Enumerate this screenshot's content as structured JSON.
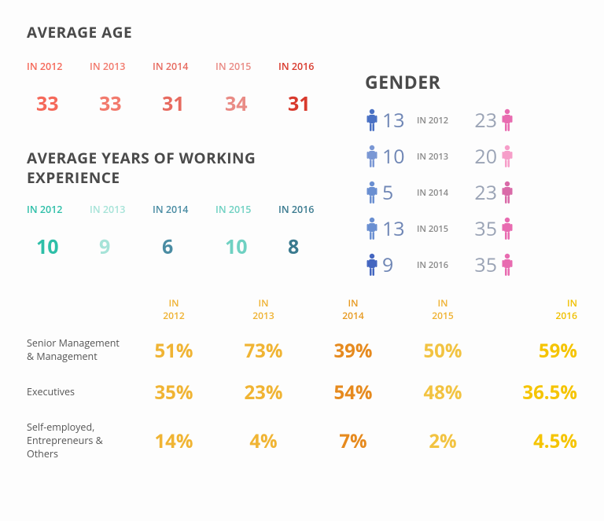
{
  "colors": {
    "heading": "#4a4a4a",
    "body": "#555555",
    "age_palette": [
      "#f5695a",
      "#f27a6d",
      "#e76b60",
      "#e98b85",
      "#d83a2d"
    ],
    "exp_palette": [
      "#2ebfa8",
      "#a6e3d8",
      "#4a8ca3",
      "#6fd1c2",
      "#3a7a8f"
    ],
    "gender_male": [
      "#4a71c4",
      "#7a97d4",
      "#6a8fd1",
      "#6a8fd1",
      "#4466c0"
    ],
    "gender_female": [
      "#e86bb0",
      "#f69ec9",
      "#d96aa8",
      "#e86bb0",
      "#e86bb0"
    ],
    "gender_val_male": "#6f86b5",
    "gender_val_female": "#9aa3b5",
    "gender_year": "#888888",
    "table_header_palette": [
      "#efb232",
      "#efb232",
      "#e79a22",
      "#efb232",
      "#f0c000"
    ],
    "table_cell_palette": [
      "#f0b433",
      "#f0b433",
      "#e68a1e",
      "#f2c341",
      "#f5c400"
    ]
  },
  "average_age": {
    "title": "AVERAGE AGE",
    "years": [
      "IN 2012",
      "IN 2013",
      "IN 2014",
      "IN 2015",
      "IN 2016"
    ],
    "values": [
      "33",
      "33",
      "31",
      "34",
      "31"
    ]
  },
  "experience": {
    "title": "AVERAGE YEARS OF WORKING EXPERIENCE",
    "years": [
      "IN 2012",
      "IN 2013",
      "IN 2014",
      "IN 2015",
      "IN 2016"
    ],
    "values": [
      "10",
      "9",
      "6",
      "10",
      "8"
    ]
  },
  "gender": {
    "title": "GENDER",
    "rows": [
      {
        "male": "13",
        "year": "IN 2012",
        "female": "23"
      },
      {
        "male": "10",
        "year": "IN 2013",
        "female": "20"
      },
      {
        "male": "5",
        "year": "IN 2014",
        "female": "23"
      },
      {
        "male": "13",
        "year": "IN 2015",
        "female": "35"
      },
      {
        "male": "9",
        "year": "IN 2016",
        "female": "35"
      }
    ]
  },
  "table": {
    "headers": [
      "IN\n2012",
      "IN\n2013",
      "IN\n2014",
      "IN\n2015",
      "IN\n2016"
    ],
    "rows": [
      {
        "label": "Senior Management & Management",
        "cells": [
          "51%",
          "73%",
          "39%",
          "50%",
          "59%"
        ]
      },
      {
        "label": "Executives",
        "cells": [
          "35%",
          "23%",
          "54%",
          "48%",
          "36.5%"
        ]
      },
      {
        "label": "Self-employed, Entrepreneurs & Others",
        "cells": [
          "14%",
          "4%",
          "7%",
          "2%",
          "4.5%"
        ]
      }
    ]
  }
}
